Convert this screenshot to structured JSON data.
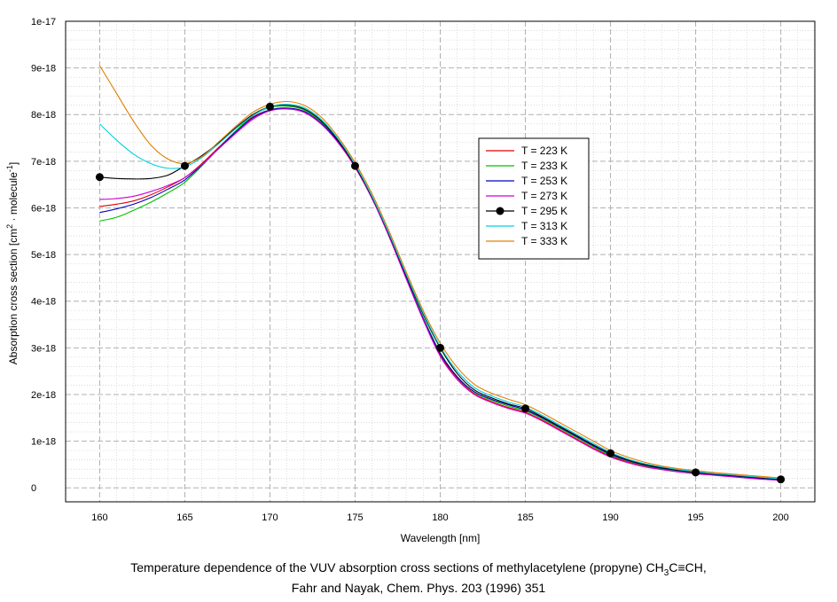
{
  "chart_data": {
    "type": "line",
    "caption": {
      "line1_prefix": "Temperature dependence of the VUV absorption cross sections of methylacetylene (propyne) CH",
      "line1_sub1": "3",
      "line1_middle": "C≡CH,",
      "line2": "Fahr and Nayak, Chem. Phys. 203 (1996) 351"
    },
    "xlabel": "Wavelength [nm]",
    "ylabel": {
      "prefix": "Absorption cross section [cm",
      "sup1": "2",
      "middle": " · molecule",
      "sup2": "-1",
      "suffix": "]"
    },
    "xlim": [
      158,
      202
    ],
    "ylim": [
      -3e-19,
      1e-17
    ],
    "x_ticks": [
      160,
      165,
      170,
      175,
      180,
      185,
      190,
      195,
      200
    ],
    "x_tick_labels": [
      "160",
      "165",
      "170",
      "175",
      "180",
      "185",
      "190",
      "195",
      "200"
    ],
    "y_ticks": [
      0,
      1e-18,
      2e-18,
      3e-18,
      4e-18,
      5e-18,
      6e-18,
      7e-18,
      8e-18,
      9e-18,
      1e-17
    ],
    "y_tick_labels": [
      "0",
      "1e-18",
      "2e-18",
      "3e-18",
      "4e-18",
      "5e-18",
      "6e-18",
      "7e-18",
      "8e-18",
      "9e-18",
      "1e-17"
    ],
    "grid": true,
    "legend_position": "right-center",
    "x": [
      160,
      161,
      162,
      163,
      164,
      165,
      166,
      167,
      168,
      169,
      170,
      171,
      172,
      173,
      174,
      175,
      176,
      177,
      178,
      179,
      180,
      181,
      182,
      183,
      184,
      185,
      186,
      187,
      188,
      189,
      190,
      191,
      192,
      193,
      194,
      195,
      196,
      197,
      198,
      199,
      200
    ],
    "series": [
      {
        "name": "T = 223 K",
        "color": "#e00000",
        "marker": false,
        "values": [
          6.03e-18,
          6.08e-18,
          6.15e-18,
          6.28e-18,
          6.45e-18,
          6.65e-18,
          6.95e-18,
          7.3e-18,
          7.65e-18,
          7.95e-18,
          8.1e-18,
          8.13e-18,
          8.05e-18,
          7.8e-18,
          7.4e-18,
          6.87e-18,
          6.2e-18,
          5.4e-18,
          4.5e-18,
          3.62e-18,
          2.85e-18,
          2.35e-18,
          2.02e-18,
          1.85e-18,
          1.72e-18,
          1.62e-18,
          1.45e-18,
          1.25e-18,
          1.05e-18,
          8.5e-19,
          6.8e-19,
          5.6e-19,
          4.7e-19,
          4e-19,
          3.5e-19,
          3.1e-19,
          2.8e-19,
          2.5e-19,
          2.2e-19,
          1.9e-19,
          1.7e-19
        ]
      },
      {
        "name": "T = 233 K",
        "color": "#00c000",
        "marker": false,
        "values": [
          5.72e-18,
          5.8e-18,
          5.95e-18,
          6.12e-18,
          6.32e-18,
          6.55e-18,
          6.9e-18,
          7.28e-18,
          7.65e-18,
          7.98e-18,
          8.15e-18,
          8.18e-18,
          8.1e-18,
          7.85e-18,
          7.45e-18,
          6.9e-18,
          6.22e-18,
          5.42e-18,
          4.52e-18,
          3.65e-18,
          2.9e-18,
          2.38e-18,
          2.05e-18,
          1.88e-18,
          1.75e-18,
          1.65e-18,
          1.48e-18,
          1.28e-18,
          1.08e-18,
          8.8e-19,
          7e-19,
          5.8e-19,
          4.8e-19,
          4.1e-19,
          3.6e-19,
          3.2e-19,
          2.9e-19,
          2.6e-19,
          2.3e-19,
          2e-19,
          1.8e-19
        ]
      },
      {
        "name": "T = 253 K",
        "color": "#0000c0",
        "marker": false,
        "values": [
          5.9e-18,
          5.98e-18,
          6.08e-18,
          6.22e-18,
          6.4e-18,
          6.6e-18,
          6.92e-18,
          7.28e-18,
          7.63e-18,
          7.93e-18,
          8.1e-18,
          8.14e-18,
          8.07e-18,
          7.82e-18,
          7.42e-18,
          6.88e-18,
          6.2e-18,
          5.4e-18,
          4.5e-18,
          3.63e-18,
          2.88e-18,
          2.38e-18,
          2.06e-18,
          1.9e-18,
          1.78e-18,
          1.67e-18,
          1.5e-18,
          1.3e-18,
          1.1e-18,
          9e-19,
          7.2e-19,
          5.9e-19,
          4.9e-19,
          4.2e-19,
          3.7e-19,
          3.3e-19,
          2.9e-19,
          2.6e-19,
          2.3e-19,
          2e-19,
          1.8e-19
        ]
      },
      {
        "name": "T = 273 K",
        "color": "#d000d0",
        "marker": false,
        "values": [
          6.18e-18,
          6.2e-18,
          6.25e-18,
          6.35e-18,
          6.48e-18,
          6.65e-18,
          6.93e-18,
          7.27e-18,
          7.6e-18,
          7.9e-18,
          8.08e-18,
          8.12e-18,
          8.05e-18,
          7.8e-18,
          7.4e-18,
          6.88e-18,
          6.2e-18,
          5.38e-18,
          4.48e-18,
          3.6e-18,
          2.82e-18,
          2.32e-18,
          2e-18,
          1.83e-18,
          1.7e-18,
          1.6e-18,
          1.43e-18,
          1.23e-18,
          1.03e-18,
          8.3e-19,
          6.6e-19,
          5.4e-19,
          4.5e-19,
          3.9e-19,
          3.4e-19,
          3e-19,
          2.7e-19,
          2.4e-19,
          2.1e-19,
          1.8e-19,
          1.6e-19
        ]
      },
      {
        "name": "T = 295 K",
        "color": "#000000",
        "marker": true,
        "values": [
          6.66e-18,
          6.63e-18,
          6.62e-18,
          6.63e-18,
          6.7e-18,
          6.9e-18,
          7.12e-18,
          7.4e-18,
          7.72e-18,
          8e-18,
          8.17e-18,
          8.2e-18,
          8.12e-18,
          7.87e-18,
          7.45e-18,
          6.9e-18,
          6.23e-18,
          5.43e-18,
          4.55e-18,
          3.72e-18,
          3e-18,
          2.45e-18,
          2.1e-18,
          1.93e-18,
          1.8e-18,
          1.7e-18,
          1.52e-18,
          1.32e-18,
          1.12e-18,
          9.2e-19,
          7.4e-19,
          6e-19,
          5e-19,
          4.3e-19,
          3.8e-19,
          3.3e-19,
          3e-19,
          2.7e-19,
          2.4e-19,
          2.1e-19,
          1.8e-19
        ]
      },
      {
        "name": "T = 313 K",
        "color": "#00d0e0",
        "marker": false,
        "values": [
          7.8e-18,
          7.45e-18,
          7.15e-18,
          6.95e-18,
          6.85e-18,
          6.88e-18,
          7.08e-18,
          7.38e-18,
          7.7e-18,
          7.98e-18,
          8.17e-18,
          8.22e-18,
          8.15e-18,
          7.9e-18,
          7.48e-18,
          6.93e-18,
          6.25e-18,
          5.45e-18,
          4.58e-18,
          3.75e-18,
          3.03e-18,
          2.5e-18,
          2.15e-18,
          1.97e-18,
          1.84e-18,
          1.73e-18,
          1.55e-18,
          1.35e-18,
          1.15e-18,
          9.5e-19,
          7.6e-19,
          6.2e-19,
          5.2e-19,
          4.5e-19,
          3.9e-19,
          3.5e-19,
          3.1e-19,
          2.8e-19,
          2.5e-19,
          2.2e-19,
          1.9e-19
        ]
      },
      {
        "name": "T = 333 K",
        "color": "#e08000",
        "marker": false,
        "values": [
          9.05e-18,
          8.45e-18,
          7.85e-18,
          7.35e-18,
          7.05e-18,
          6.95e-18,
          7.1e-18,
          7.42e-18,
          7.75e-18,
          8.05e-18,
          8.22e-18,
          8.28e-18,
          8.2e-18,
          7.95e-18,
          7.52e-18,
          6.97e-18,
          6.3e-18,
          5.5e-18,
          4.63e-18,
          3.8e-18,
          3.1e-18,
          2.58e-18,
          2.22e-18,
          2.03e-18,
          1.9e-18,
          1.78e-18,
          1.6e-18,
          1.4e-18,
          1.2e-18,
          1e-18,
          8e-19,
          6.6e-19,
          5.5e-19,
          4.7e-19,
          4.1e-19,
          3.7e-19,
          3.3e-19,
          3e-19,
          2.7e-19,
          2.4e-19,
          2.1e-19
        ]
      }
    ],
    "markers_at": [
      160,
      165,
      170,
      175,
      180,
      185,
      190,
      195,
      200
    ]
  }
}
